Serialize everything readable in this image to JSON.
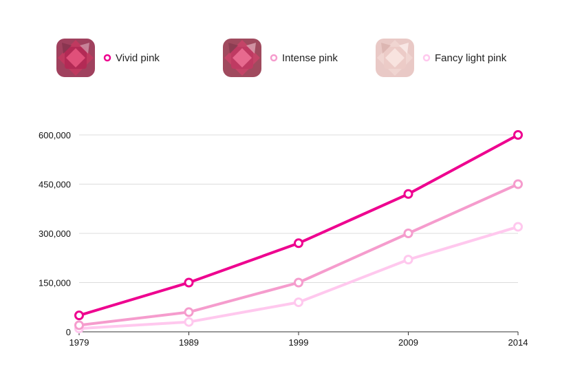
{
  "legend": [
    {
      "label": "Vivid pink",
      "color": "#ee008f",
      "gem": "vivid-pink-diamond"
    },
    {
      "label": "Intense pink",
      "color": "#f59ccd",
      "gem": "intense-pink-diamond"
    },
    {
      "label": "Fancy light pink",
      "color": "#ffc8ee",
      "gem": "fancy-light-pink-diamond"
    }
  ],
  "chart_data": {
    "type": "line",
    "title": "",
    "xlabel": "",
    "ylabel": "",
    "x": [
      "1979",
      "1989",
      "1999",
      "2009",
      "2014"
    ],
    "ylim": [
      0,
      600000
    ],
    "yticks": [
      0,
      150000,
      300000,
      450000,
      600000
    ],
    "ytick_labels": [
      "0",
      "150,000",
      "300,000",
      "450,000",
      "600,000"
    ],
    "grid": true,
    "legend_position": "top",
    "series": [
      {
        "name": "Vivid pink",
        "color": "#ee008f",
        "values": [
          50000,
          150000,
          270000,
          420000,
          600000
        ]
      },
      {
        "name": "Intense pink",
        "color": "#f59ccd",
        "values": [
          20000,
          60000,
          150000,
          300000,
          450000
        ]
      },
      {
        "name": "Fancy light pink",
        "color": "#ffc8ee",
        "values": [
          10000,
          30000,
          90000,
          220000,
          320000
        ]
      }
    ]
  }
}
